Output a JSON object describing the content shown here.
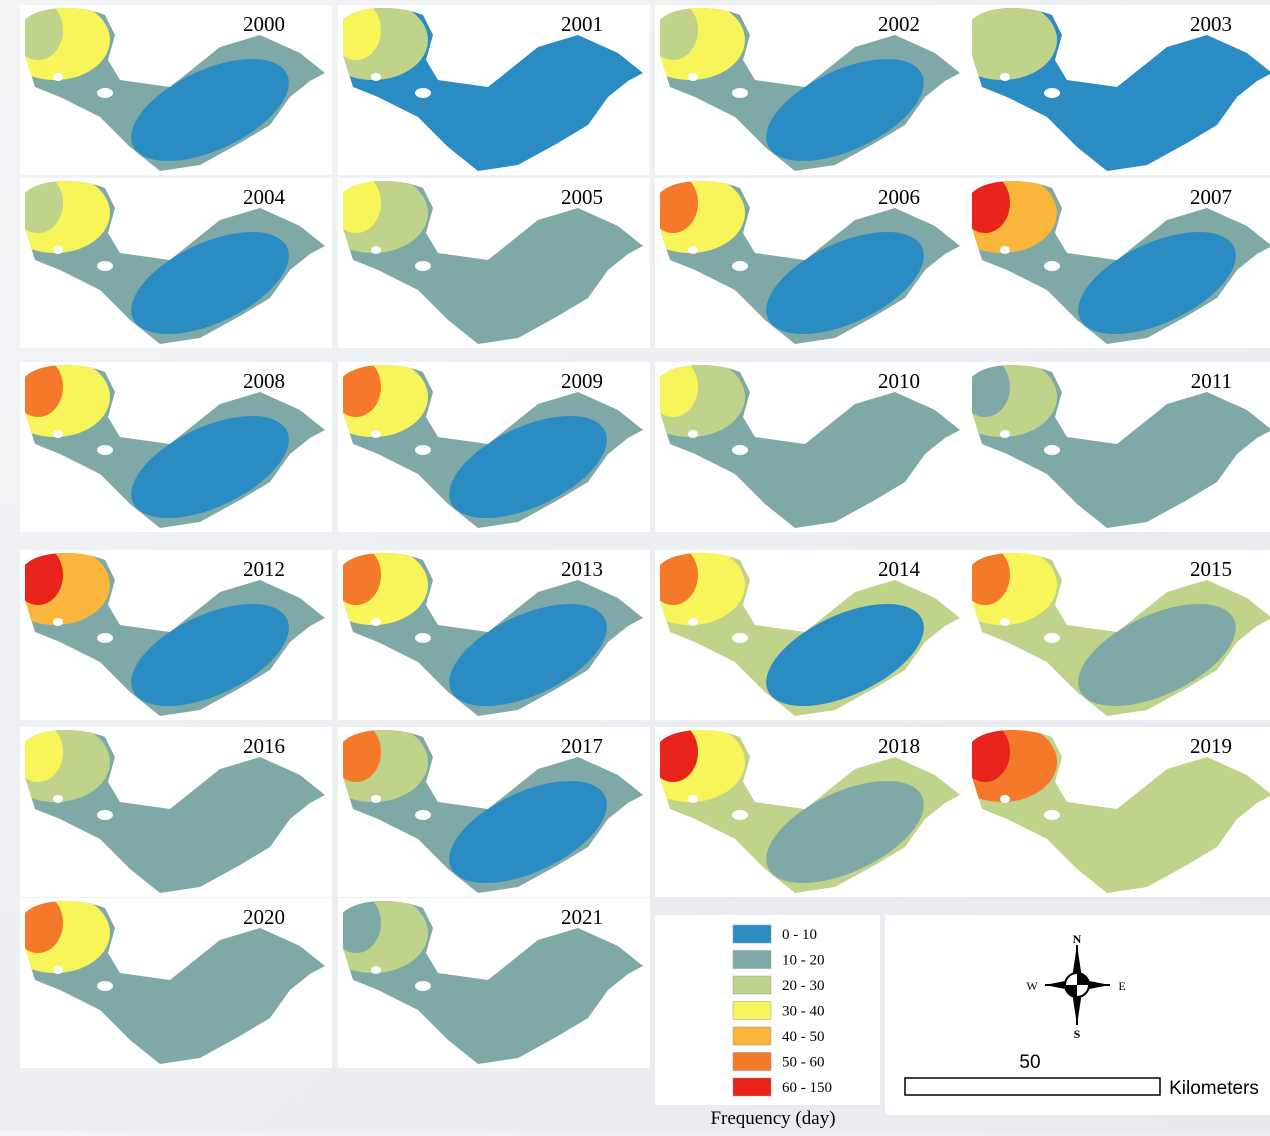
{
  "panels": [
    {
      "year": "2000"
    },
    {
      "year": "2001"
    },
    {
      "year": "2002"
    },
    {
      "year": "2003"
    },
    {
      "year": "2004"
    },
    {
      "year": "2005"
    },
    {
      "year": "2006"
    },
    {
      "year": "2007"
    },
    {
      "year": "2008"
    },
    {
      "year": "2009"
    },
    {
      "year": "2010"
    },
    {
      "year": "2011"
    },
    {
      "year": "2012"
    },
    {
      "year": "2013"
    },
    {
      "year": "2014"
    },
    {
      "year": "2015"
    },
    {
      "year": "2016"
    },
    {
      "year": "2017"
    },
    {
      "year": "2018"
    },
    {
      "year": "2019"
    },
    {
      "year": "2020"
    },
    {
      "year": "2021"
    }
  ],
  "legend": {
    "title": "Frequency (day)",
    "items": [
      {
        "label": "0 - 10",
        "color": "#2b8cc4"
      },
      {
        "label": "10 - 20",
        "color": "#7fa9a6"
      },
      {
        "label": "20 - 30",
        "color": "#bfd38a"
      },
      {
        "label": "30 - 40",
        "color": "#f7f55a"
      },
      {
        "label": "40 - 50",
        "color": "#f9b53c"
      },
      {
        "label": "50 - 60",
        "color": "#f5792a"
      },
      {
        "label": "60 - 150",
        "color": "#e8231c"
      }
    ]
  },
  "compass": {
    "n": "N",
    "s": "S",
    "e": "E",
    "w": "W"
  },
  "scale": {
    "label": "50",
    "unit": "Kilometers"
  }
}
